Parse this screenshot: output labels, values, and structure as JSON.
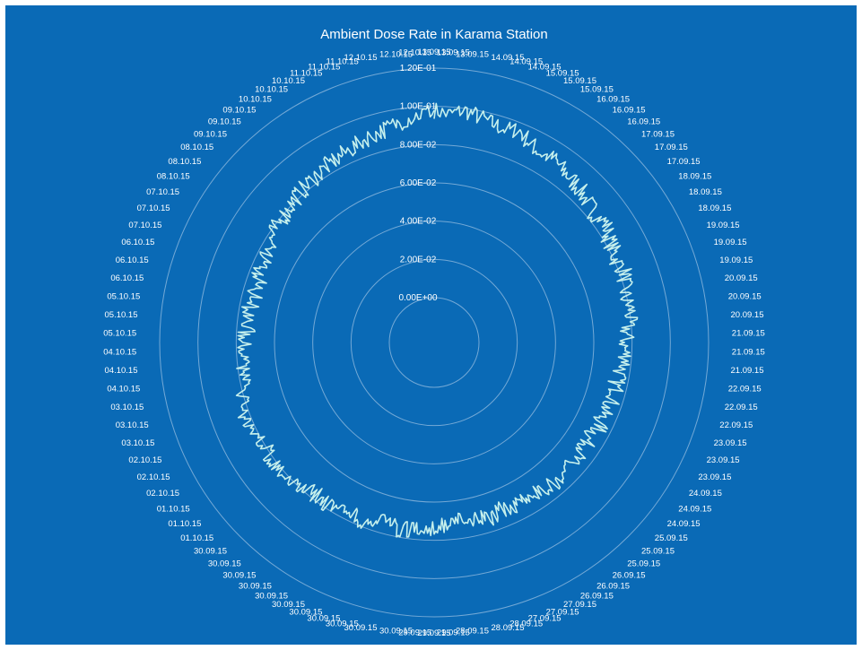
{
  "chart_data": {
    "type": "line",
    "polar": true,
    "title": "Ambient Dose Rate in Karama Station",
    "radial_axis": {
      "min": 0,
      "max": 0.12,
      "ticks": [
        "0.00E+00",
        "2.00E-02",
        "4.00E-02",
        "6.00E-02",
        "8.00E-02",
        "1.00E-01",
        "1.20E-01"
      ],
      "tick_values": [
        0,
        0.02,
        0.04,
        0.06,
        0.08,
        0.1,
        0.12
      ]
    },
    "angular_labels": [
      "13.09.15",
      "13.09.15",
      "13.09.15",
      "14.09.15",
      "14.09.15",
      "14.09.15",
      "15.09.15",
      "15.09.15",
      "15.09.15",
      "16.09.15",
      "16.09.15",
      "16.09.15",
      "17.09.15",
      "17.09.15",
      "17.09.15",
      "18.09.15",
      "18.09.15",
      "18.09.15",
      "19.09.15",
      "19.09.15",
      "19.09.15",
      "20.09.15",
      "20.09.15",
      "20.09.15",
      "21.09.15",
      "21.09.15",
      "21.09.15",
      "22.09.15",
      "22.09.15",
      "22.09.15",
      "23.09.15",
      "23.09.15",
      "23.09.15",
      "24.09.15",
      "24.09.15",
      "24.09.15",
      "25.09.15",
      "25.09.15",
      "25.09.15",
      "26.09.15",
      "26.09.15",
      "26.09.15",
      "27.09.15",
      "27.09.15",
      "27.09.15",
      "28.09.15",
      "28.09.15",
      "28.09.15",
      "29.09.15",
      "29.09.15",
      "29.09.15",
      "30.09.15",
      "30.09.15",
      "30.09.15",
      "30.09.15",
      "30.09.15",
      "30.09.15",
      "30.09.15",
      "30.09.15",
      "30.09.15",
      "30.09.15",
      "30.09.15",
      "01.10.15",
      "01.10.15",
      "01.10.15",
      "02.10.15",
      "02.10.15",
      "02.10.15",
      "03.10.15",
      "03.10.15",
      "03.10.15",
      "04.10.15",
      "04.10.15",
      "04.10.15",
      "05.10.15",
      "05.10.15",
      "05.10.15",
      "06.10.15",
      "06.10.15",
      "06.10.15",
      "07.10.15",
      "07.10.15",
      "07.10.15",
      "08.10.15",
      "08.10.15",
      "08.10.15",
      "09.10.15",
      "09.10.15",
      "09.10.15",
      "10.10.15",
      "10.10.15",
      "10.10.15",
      "11.10.15",
      "11.10.15",
      "11.10.15",
      "12.10.15",
      "12.10.15",
      "12.10.15"
    ],
    "series": [
      {
        "values": [
          0.098,
          0.096,
          0.099,
          0.097,
          0.095,
          0.094,
          0.096,
          0.092,
          0.09,
          0.091,
          0.089,
          0.088,
          0.087,
          0.085,
          0.084,
          0.086,
          0.083,
          0.082,
          0.081,
          0.083,
          0.08,
          0.079,
          0.081,
          0.078,
          0.077,
          0.076,
          0.078,
          0.075,
          0.074,
          0.076,
          0.073,
          0.072,
          0.074,
          0.071,
          0.073,
          0.072,
          0.07,
          0.071,
          0.073,
          0.072,
          0.071,
          0.07,
          0.072,
          0.071,
          0.073,
          0.072,
          0.07,
          0.071,
          0.072,
          0.074,
          0.073,
          0.075,
          0.076,
          0.074,
          0.075,
          0.077,
          0.076,
          0.078,
          0.079,
          0.077,
          0.078,
          0.08,
          0.079,
          0.081,
          0.082,
          0.08,
          0.081,
          0.083,
          0.082,
          0.081,
          0.079,
          0.078,
          0.077,
          0.076,
          0.075,
          0.074,
          0.075,
          0.074,
          0.073,
          0.074,
          0.075,
          0.076,
          0.077,
          0.078,
          0.079,
          0.08,
          0.081,
          0.082,
          0.083,
          0.084,
          0.085,
          0.086,
          0.087,
          0.089,
          0.09,
          0.092,
          0.094,
          0.096
        ],
        "color": "#c6f0ec"
      }
    ],
    "colors": {
      "background": "#0a6ab6",
      "grid": "#8fb9df",
      "text": "#ffffff"
    }
  }
}
